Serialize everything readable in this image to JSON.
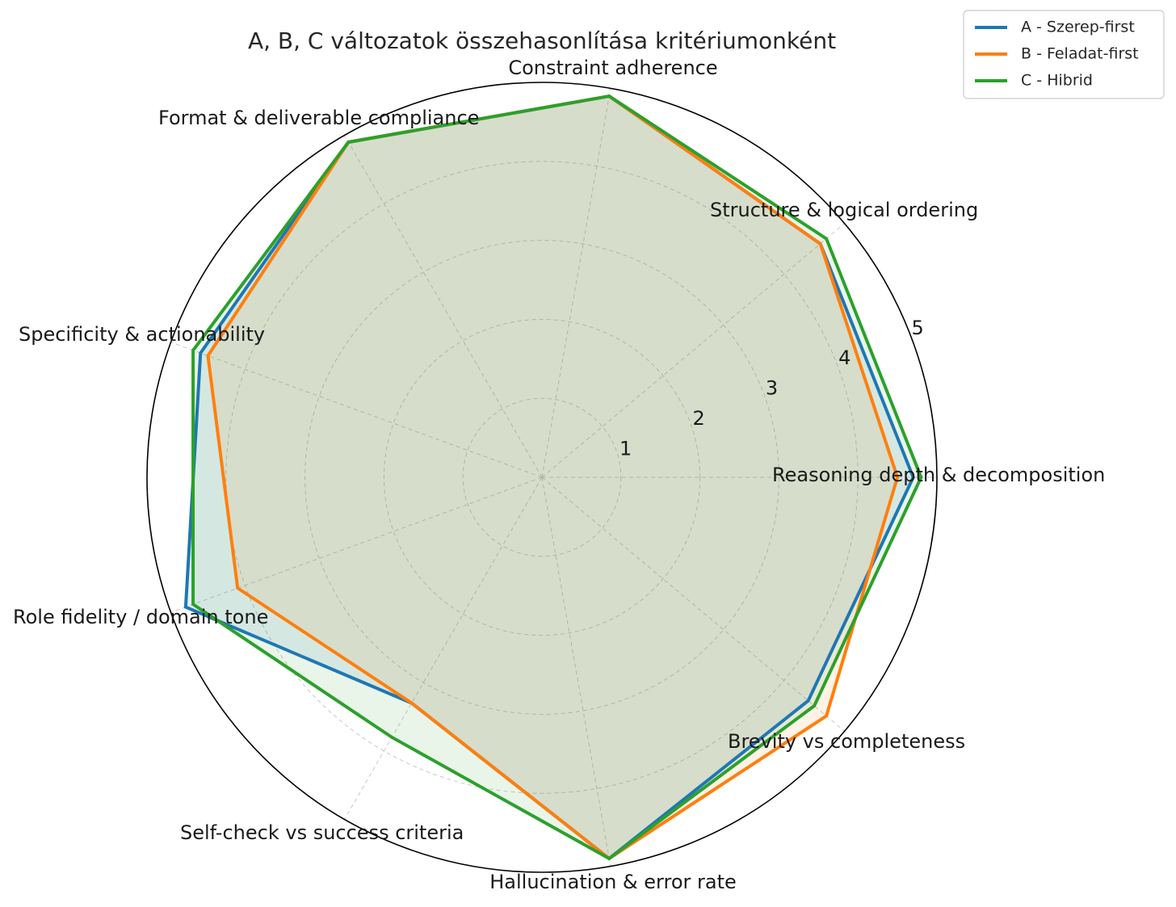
{
  "chart_data": {
    "type": "radar",
    "title": "A, B, C változatok összehasonlítása kritériumonként",
    "categories": [
      "Reasoning depth & decomposition",
      "Structure & logical ordering",
      "Constraint adherence",
      "Format & deliverable compliance",
      "Specificity & actionability",
      "Role fidelity / domain tone",
      "Self-check vs success criteria",
      "Hallucination & error rate",
      "Brevity vs completeness"
    ],
    "rlim": [
      0,
      5
    ],
    "rticks": [
      1,
      2,
      3,
      4,
      5
    ],
    "rtick_labels": [
      "1",
      "2",
      "3",
      "4",
      "5"
    ],
    "grid": true,
    "legend_position": "top-right",
    "series": [
      {
        "name": "A - Szerep-first",
        "color": "#1f77b4",
        "values": [
          4.7,
          4.6,
          4.9,
          4.9,
          4.6,
          4.8,
          3.3,
          4.9,
          4.4
        ]
      },
      {
        "name": "B - Feladat-first",
        "color": "#ff7f0e",
        "values": [
          4.5,
          4.6,
          4.9,
          4.9,
          4.5,
          4.1,
          3.3,
          4.9,
          4.7
        ]
      },
      {
        "name": "C - Hibrid",
        "color": "#2ca02c",
        "values": [
          4.8,
          4.7,
          4.9,
          4.9,
          4.7,
          4.7,
          3.8,
          4.9,
          4.5
        ]
      }
    ]
  }
}
